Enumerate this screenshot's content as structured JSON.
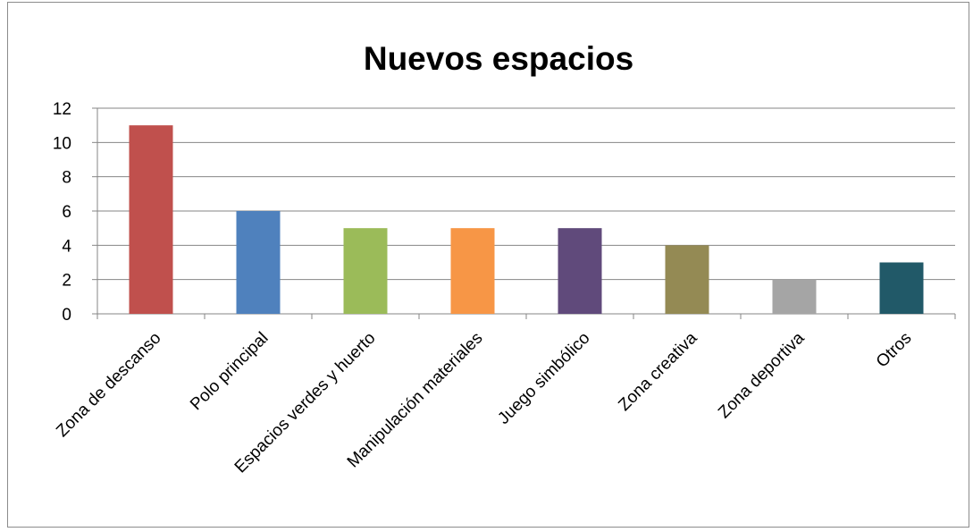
{
  "chart_data": {
    "type": "bar",
    "title": "Nuevos espacios",
    "xlabel": "",
    "ylabel": "",
    "categories": [
      "Zona de descanso",
      "Polo principal",
      "Espacios verdes y huerto",
      "Manipulación materiales",
      "Juego simbólico",
      "Zona creativa",
      "Zona deportiva",
      "Otros"
    ],
    "values": [
      11,
      6,
      5,
      5,
      5,
      4,
      2,
      3
    ],
    "colors": [
      "#c0504d",
      "#4f81bd",
      "#9bbb59",
      "#f79646",
      "#604a7b",
      "#948a54",
      "#a5a5a5",
      "#215968"
    ],
    "ylim": [
      0,
      12
    ],
    "yticks": [
      0,
      2,
      4,
      6,
      8,
      10,
      12
    ],
    "grid": true,
    "legend": "none"
  }
}
